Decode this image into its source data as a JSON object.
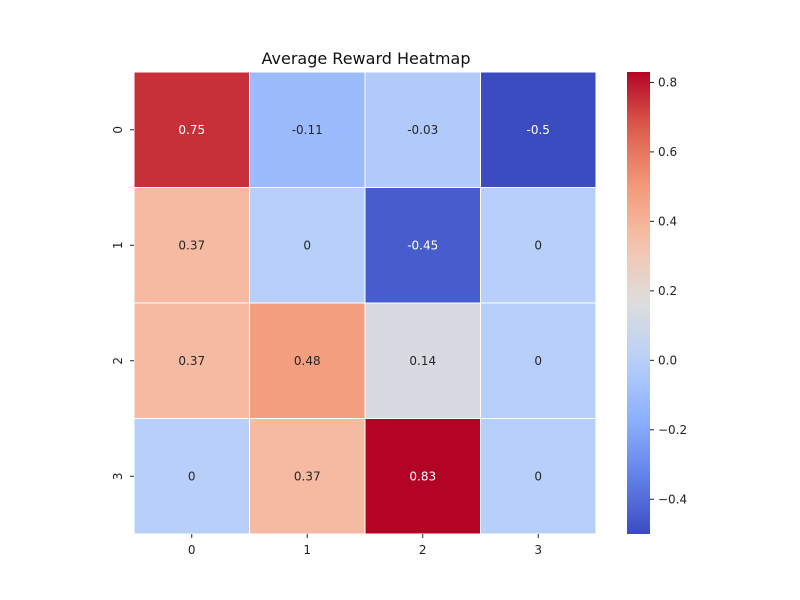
{
  "chart_data": {
    "type": "heatmap",
    "title": "Average Reward Heatmap",
    "xlabel": "",
    "ylabel": "",
    "x_categories": [
      "0",
      "1",
      "2",
      "3"
    ],
    "y_categories": [
      "0",
      "1",
      "2",
      "3"
    ],
    "values": [
      [
        0.75,
        -0.11,
        -0.03,
        -0.5
      ],
      [
        0.37,
        0,
        -0.45,
        0
      ],
      [
        0.37,
        0.48,
        0.14,
        0
      ],
      [
        0,
        0.37,
        0.83,
        0
      ]
    ],
    "cell_labels": [
      [
        "0.75",
        "-0.11",
        "-0.03",
        "-0.5"
      ],
      [
        "0.37",
        "0",
        "-0.45",
        "0"
      ],
      [
        "0.37",
        "0.48",
        "0.14",
        "0"
      ],
      [
        "0",
        "0.37",
        "0.83",
        "0"
      ]
    ],
    "colormap": "coolwarm",
    "vmin": -0.5,
    "vmax": 0.83,
    "colorbar": {
      "ticks": [
        -0.4,
        -0.2,
        0.0,
        0.2,
        0.4,
        0.6,
        0.8
      ],
      "tick_labels": [
        "−0.4",
        "−0.2",
        "0.0",
        "0.2",
        "0.4",
        "0.6",
        "0.8"
      ],
      "placement": "right"
    },
    "grid": true,
    "cell_border_color": "#ffffff"
  }
}
